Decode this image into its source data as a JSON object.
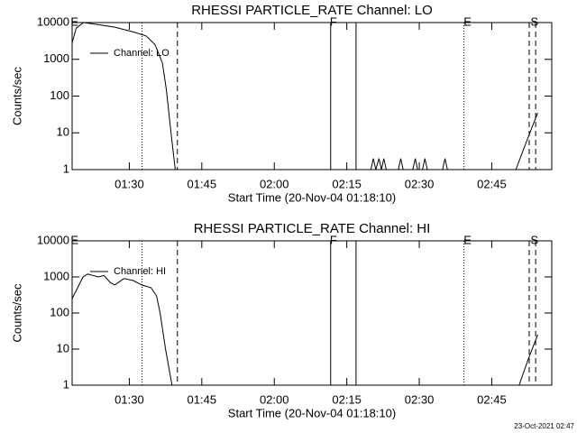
{
  "chart_data": [
    {
      "type": "line",
      "title": "RHESSI PARTICLE_RATE Channel: LO",
      "xlabel": "Start Time (20-Nov-04 01:18:10)",
      "ylabel": "Counts/sec",
      "x": [
        "01:18:10",
        "01:19:00",
        "01:20:30",
        "01:23:00",
        "01:27:00",
        "01:31:00",
        "01:33:30",
        "01:35:20",
        "01:36:50",
        "01:37:40",
        "01:38:40",
        "01:39:30",
        "02:20:00",
        "02:20:30",
        "02:21:00",
        "02:21:40",
        "02:22:10",
        "02:22:40",
        "02:23:10",
        "02:25:40",
        "02:26:10",
        "02:26:40",
        "02:28:40",
        "02:29:10",
        "02:29:40",
        "02:30:40",
        "02:31:10",
        "02:31:40",
        "02:34:50",
        "02:35:20",
        "02:35:50",
        "02:50:00",
        "02:52:00",
        "02:54:30"
      ],
      "series": [
        {
          "name": "Channel: LO",
          "color": "#000000",
          "values": [
            2800,
            7000,
            10000,
            9000,
            7500,
            5500,
            4300,
            2500,
            800,
            150,
            9,
            1,
            1,
            2,
            1,
            2,
            1,
            2,
            1,
            1,
            2,
            1,
            1,
            2,
            1,
            1,
            2,
            1,
            1,
            2,
            1,
            1,
            5,
            35
          ]
        }
      ],
      "xlim": [
        "01:18:10",
        "02:57:25"
      ],
      "xticks": [
        "01:30",
        "01:45",
        "02:00",
        "02:15",
        "02:30",
        "02:45"
      ],
      "ylim": [
        1,
        10000
      ],
      "yticks": [
        1,
        10,
        100,
        1000,
        10000
      ],
      "log_y": true,
      "legend": "upper left",
      "vlines": [
        {
          "x": "01:32:38",
          "style": "dotted"
        },
        {
          "x": "01:39:57",
          "style": "dashed"
        },
        {
          "x": "02:11:40",
          "style": "solid"
        },
        {
          "x": "02:16:55",
          "style": "solid"
        },
        {
          "x": "02:39:15",
          "style": "dotted"
        },
        {
          "x": "02:52:45",
          "style": "dashed"
        },
        {
          "x": "02:54:05",
          "style": "dashed"
        }
      ],
      "annotations": [
        {
          "text": "E",
          "x": "01:18:40"
        },
        {
          "text": "F",
          "x": "02:12:15"
        },
        {
          "text": "E",
          "x": "02:40:00"
        },
        {
          "text": "S",
          "x": "02:53:50"
        }
      ]
    },
    {
      "type": "line",
      "title": "RHESSI PARTICLE_RATE Channel: HI",
      "xlabel": "Start Time (20-Nov-04 01:18:10)",
      "ylabel": "Counts/sec",
      "x": [
        "01:18:10",
        "01:20:25",
        "01:21:22",
        "01:23:37",
        "01:24:45",
        "01:26:04",
        "01:27:00",
        "01:28:52",
        "01:30:45",
        "01:32:38",
        "01:34:30",
        "01:35:38",
        "01:36:23",
        "01:37:30",
        "01:38:50",
        "02:50:40",
        "02:52:30",
        "02:54:30"
      ],
      "series": [
        {
          "name": "Channel: HI",
          "color": "#000000",
          "values": [
            250,
            1000,
            1200,
            1000,
            1100,
            700,
            600,
            900,
            800,
            600,
            500,
            300,
            100,
            10,
            1,
            1,
            5,
            25
          ]
        }
      ],
      "xlim": [
        "01:18:10",
        "02:57:25"
      ],
      "xticks": [
        "01:30",
        "01:45",
        "02:00",
        "02:15",
        "02:30",
        "02:45"
      ],
      "ylim": [
        1,
        10000
      ],
      "yticks": [
        1,
        10,
        100,
        1000,
        10000
      ],
      "log_y": true,
      "legend": "upper left",
      "vlines": [
        {
          "x": "01:32:38",
          "style": "dotted"
        },
        {
          "x": "01:39:57",
          "style": "dashed"
        },
        {
          "x": "02:11:40",
          "style": "solid"
        },
        {
          "x": "02:16:55",
          "style": "solid"
        },
        {
          "x": "02:39:15",
          "style": "dotted"
        },
        {
          "x": "02:52:45",
          "style": "dashed"
        },
        {
          "x": "02:54:05",
          "style": "dashed"
        }
      ],
      "annotations": [
        {
          "text": "E",
          "x": "01:18:40"
        },
        {
          "text": "F",
          "x": "02:12:15"
        },
        {
          "text": "E",
          "x": "02:40:00"
        },
        {
          "text": "S",
          "x": "02:53:50"
        }
      ]
    }
  ],
  "footer": "23-Oct-2021 02:47"
}
